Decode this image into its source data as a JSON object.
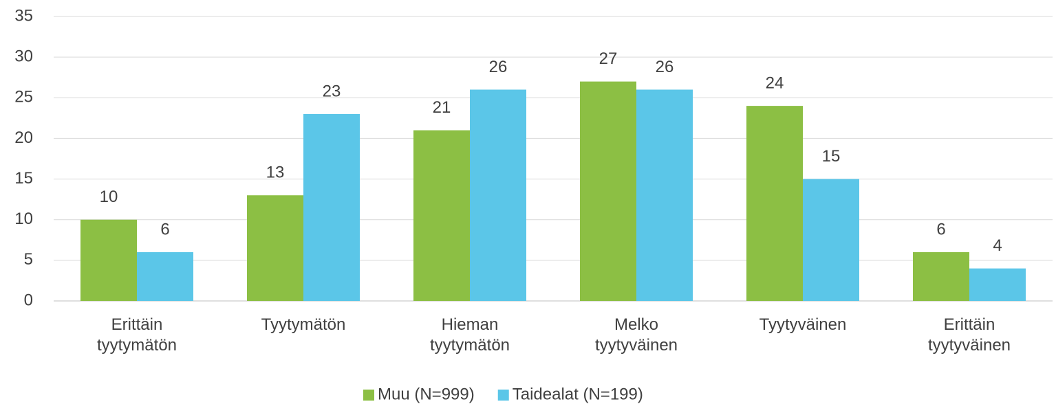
{
  "chart_data": {
    "type": "bar",
    "categories": [
      "Erittäin\ntyytymätön",
      "Tyytymätön",
      "Hieman\ntyytymätön",
      "Melko\ntyytyväinen",
      "Tyytyväinen",
      "Erittäin\ntyytyväinen"
    ],
    "series": [
      {
        "name": "Muu (N=999)",
        "color": "#8cbf44",
        "values": [
          10,
          13,
          21,
          27,
          24,
          6
        ]
      },
      {
        "name": "Taidealat (N=199)",
        "color": "#5bc6e8",
        "values": [
          6,
          23,
          26,
          26,
          15,
          4
        ]
      }
    ],
    "ylim": [
      0,
      35
    ],
    "yticks": [
      0,
      5,
      10,
      15,
      20,
      25,
      30,
      35
    ],
    "grid": true,
    "legend": "bottom"
  }
}
